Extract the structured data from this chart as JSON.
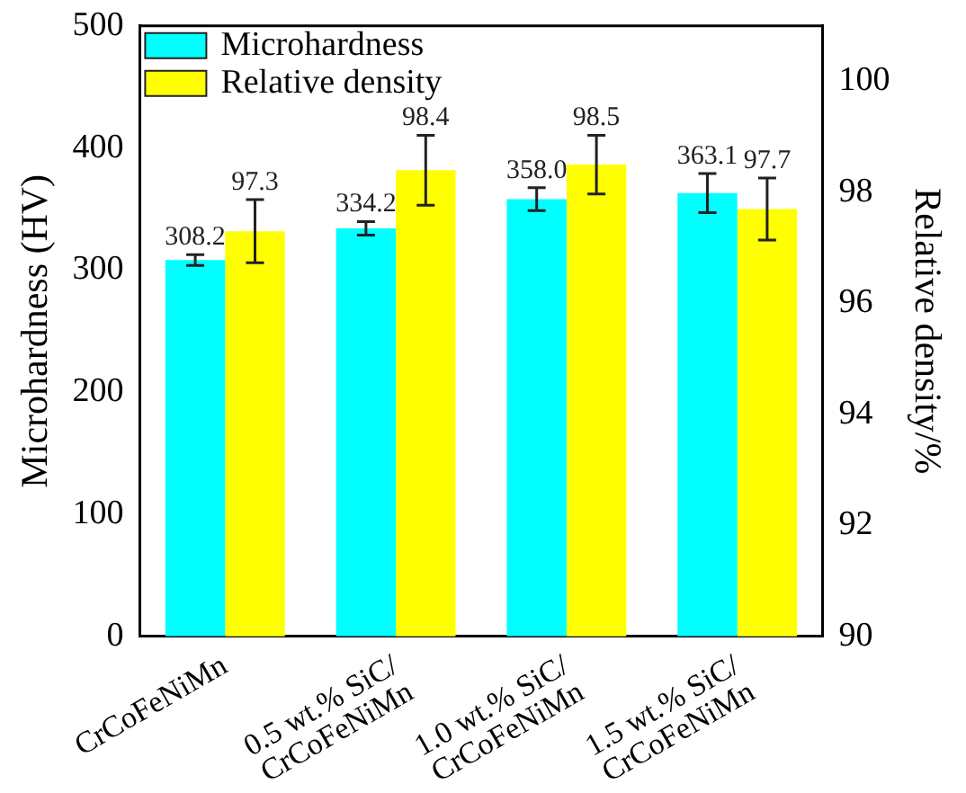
{
  "chart_data": {
    "type": "bar",
    "categories": [
      "CrCoFeNiMn",
      "0.5 wt.% SiC/\nCrCoFeNiMn",
      "1.0 wt.% SiC/\nCrCoFeNiMn",
      "1.5 wt.% SiC/\nCrCoFeNiMn"
    ],
    "series": [
      {
        "name": "Microhardness",
        "color": "#00ffff",
        "values": [
          308.2,
          334.2,
          358.0,
          363.1
        ],
        "errors": [
          4.4,
          5.5,
          9.4,
          16
        ],
        "value_labels": [
          "308.2",
          "334.2",
          "358.0",
          "363.1"
        ]
      },
      {
        "name": "Relative density",
        "color": "#ffff00",
        "axis": "y2",
        "values": [
          97.3,
          98.4,
          98.5,
          97.7
        ],
        "errors": [
          0.57,
          0.63,
          0.53,
          0.56
        ],
        "value_labels": [
          "97.3",
          "98.4",
          "98.5",
          "97.7"
        ]
      }
    ],
    "ylabel": "Microhardness (HV)",
    "y2label": "Relative density/%",
    "ylim": [
      0,
      500
    ],
    "yticks": [
      0,
      100,
      200,
      300,
      400,
      500
    ],
    "y2lim": [
      90,
      101
    ],
    "y2ticks": [
      90,
      92,
      94,
      96,
      98,
      100
    ],
    "legend": "top left",
    "grid": false
  }
}
